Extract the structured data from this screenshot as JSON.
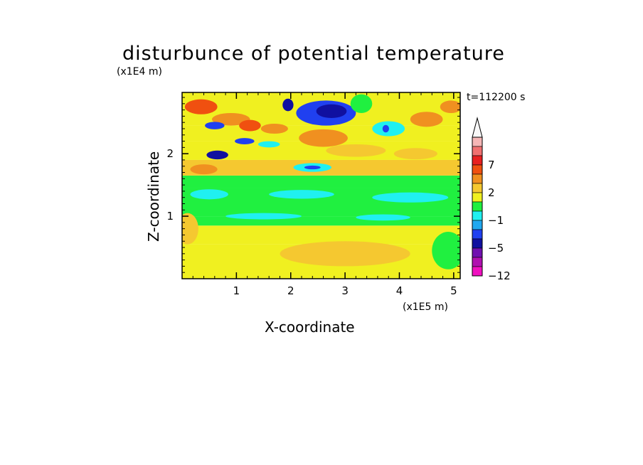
{
  "chart_data": {
    "type": "heatmap",
    "title": "disturbunce of potential temperature",
    "xlabel": "X-coordinate",
    "ylabel": "Z-coordinate",
    "x_scale_label": "(x1E5 m)",
    "y_scale_label": "(x1E4 m)",
    "time_label": "t=112200 s",
    "x_ticks": [
      "1",
      "2",
      "3",
      "4",
      "5"
    ],
    "x_tick_values": [
      1,
      2,
      3,
      4,
      5
    ],
    "y_ticks": [
      "1",
      "2"
    ],
    "y_tick_values": [
      1,
      2
    ],
    "xlim": [
      0,
      5.12
    ],
    "ylim": [
      0,
      2.98
    ],
    "colorbar": {
      "labels": [
        "7",
        "2",
        "−1",
        "−5",
        "−12"
      ],
      "label_values": [
        7,
        2,
        -1,
        -5,
        -12
      ],
      "levels_top_to_bottom": [
        "arrow",
        11,
        9,
        7,
        5,
        3,
        2,
        1,
        0,
        -1,
        -2,
        -3,
        -5,
        -7,
        -9,
        -12
      ],
      "colors_top_to_bottom": [
        "#f8f8f8",
        "#f5b6b6",
        "#f07070",
        "#e82020",
        "#f05010",
        "#f09020",
        "#f5c830",
        "#f0f020",
        "#20f040",
        "#20f0f0",
        "#20a8f0",
        "#2040f0",
        "#1010a0",
        "#7010b0",
        "#b010b0",
        "#f010c0"
      ]
    },
    "bands": [
      {
        "z0": 0.0,
        "z1": 0.55,
        "value": 0.5
      },
      {
        "z0": 0.55,
        "z1": 0.85,
        "value": 0.7
      },
      {
        "z0": 0.85,
        "z1": 1.0,
        "value": -0.3
      },
      {
        "z0": 1.0,
        "z1": 1.2,
        "value": -0.6
      },
      {
        "z0": 1.2,
        "z1": 1.45,
        "value": -0.4
      },
      {
        "z0": 1.45,
        "z1": 1.65,
        "value": -0.3
      },
      {
        "z0": 1.65,
        "z1": 1.9,
        "value": 1.0
      },
      {
        "z0": 1.9,
        "z1": 2.2,
        "value": 0.5
      },
      {
        "z0": 2.2,
        "z1": 2.45,
        "value": 0.3
      },
      {
        "z0": 2.45,
        "z1": 2.98,
        "value": 0.6
      }
    ],
    "features": [
      {
        "x": 0.35,
        "z": 2.75,
        "rx": 0.3,
        "rz": 0.12,
        "value": 3.5
      },
      {
        "x": 0.9,
        "z": 2.55,
        "rx": 0.35,
        "rz": 0.1,
        "value": 2.5
      },
      {
        "x": 1.25,
        "z": 2.45,
        "rx": 0.2,
        "rz": 0.09,
        "value": 3.5
      },
      {
        "x": 1.7,
        "z": 2.4,
        "rx": 0.25,
        "rz": 0.08,
        "value": 2.5
      },
      {
        "x": 2.65,
        "z": 2.65,
        "rx": 0.55,
        "rz": 0.2,
        "value": -3.5
      },
      {
        "x": 2.75,
        "z": 2.68,
        "rx": 0.28,
        "rz": 0.11,
        "value": -6.0
      },
      {
        "x": 1.95,
        "z": 2.78,
        "rx": 0.1,
        "rz": 0.1,
        "value": -6.0
      },
      {
        "x": 2.6,
        "z": 2.25,
        "rx": 0.45,
        "rz": 0.14,
        "value": 2.5
      },
      {
        "x": 0.6,
        "z": 2.45,
        "rx": 0.18,
        "rz": 0.06,
        "value": -5.0
      },
      {
        "x": 0.65,
        "z": 1.98,
        "rx": 0.2,
        "rz": 0.07,
        "value": -6.0
      },
      {
        "x": 1.15,
        "z": 2.2,
        "rx": 0.18,
        "rz": 0.05,
        "value": -5.0
      },
      {
        "x": 1.6,
        "z": 2.15,
        "rx": 0.2,
        "rz": 0.05,
        "value": -1.5
      },
      {
        "x": 2.4,
        "z": 1.78,
        "rx": 0.35,
        "rz": 0.07,
        "value": -1.5
      },
      {
        "x": 2.4,
        "z": 1.78,
        "rx": 0.15,
        "rz": 0.03,
        "value": -5.0
      },
      {
        "x": 3.8,
        "z": 2.4,
        "rx": 0.3,
        "rz": 0.12,
        "value": -1.5
      },
      {
        "x": 3.75,
        "z": 2.4,
        "rx": 0.06,
        "rz": 0.06,
        "value": -5.0
      },
      {
        "x": 4.5,
        "z": 2.55,
        "rx": 0.3,
        "rz": 0.12,
        "value": 2.5
      },
      {
        "x": 4.95,
        "z": 2.75,
        "rx": 0.2,
        "rz": 0.1,
        "value": 2.5
      },
      {
        "x": 3.3,
        "z": 2.8,
        "rx": 0.2,
        "rz": 0.15,
        "value": -0.5
      },
      {
        "x": 0.4,
        "z": 1.75,
        "rx": 0.25,
        "rz": 0.08,
        "value": 2.5
      },
      {
        "x": 3.2,
        "z": 2.05,
        "rx": 0.55,
        "rz": 0.1,
        "value": 1.5
      },
      {
        "x": 4.3,
        "z": 2.0,
        "rx": 0.4,
        "rz": 0.09,
        "value": 1.5
      },
      {
        "x": 3.0,
        "z": 0.4,
        "rx": 1.2,
        "rz": 0.2,
        "value": 1.5
      },
      {
        "x": 4.9,
        "z": 0.45,
        "rx": 0.3,
        "rz": 0.3,
        "value": -0.3
      },
      {
        "x": 0.1,
        "z": 0.8,
        "rx": 0.2,
        "rz": 0.25,
        "value": 1.5
      },
      {
        "x": 0.5,
        "z": 1.35,
        "rx": 0.35,
        "rz": 0.08,
        "value": -1.5
      },
      {
        "x": 2.2,
        "z": 1.35,
        "rx": 0.6,
        "rz": 0.07,
        "value": -1.5
      },
      {
        "x": 4.2,
        "z": 1.3,
        "rx": 0.7,
        "rz": 0.08,
        "value": -1.5
      },
      {
        "x": 1.5,
        "z": 1.0,
        "rx": 0.7,
        "rz": 0.05,
        "value": -1.5
      },
      {
        "x": 3.7,
        "z": 0.98,
        "rx": 0.5,
        "rz": 0.05,
        "value": -1.5
      }
    ]
  }
}
